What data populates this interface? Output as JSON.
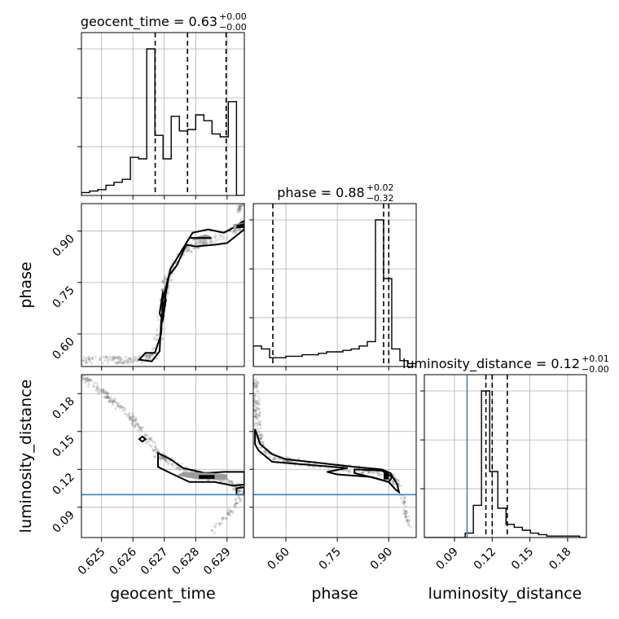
{
  "chart_data": {
    "type": "corner",
    "parameters": [
      "geocent_time",
      "phase",
      "luminosity_distance"
    ],
    "titles": [
      {
        "param": "geocent_time",
        "label": "geocent_time = 0.63",
        "plus": "+0.00",
        "minus": "−0.00"
      },
      {
        "param": "phase",
        "label": "phase = 0.88",
        "plus": "+0.02",
        "minus": "−0.32"
      },
      {
        "param": "luminosity_distance",
        "label": "luminosity_distance = 0.12",
        "plus": "+0.01",
        "minus": "−0.00"
      }
    ],
    "ranges": {
      "geocent_time": [
        0.62436,
        0.62955
      ],
      "phase": [
        0.505,
        0.98
      ],
      "luminosity_distance": [
        0.066,
        0.195
      ]
    },
    "ticks": {
      "geocent_time": [
        0.625,
        0.626,
        0.627,
        0.628,
        0.629
      ],
      "geocent_time_labels": [
        "0.625",
        "0.626",
        "0.627",
        "0.628",
        "0.629"
      ],
      "phase": [
        0.6,
        0.75,
        0.9
      ],
      "phase_labels": [
        "0.60",
        "0.75",
        "0.90"
      ],
      "luminosity_distance": [
        0.09,
        0.12,
        0.15,
        0.18
      ],
      "luminosity_distance_labels": [
        "0.09",
        "0.12",
        "0.15",
        "0.18"
      ]
    },
    "quantiles": {
      "geocent_time": [
        0.62671,
        0.62774,
        0.62897
      ],
      "phase": [
        0.562,
        0.885,
        0.9
      ],
      "luminosity_distance": [
        0.115,
        0.12,
        0.132
      ]
    },
    "truth": {
      "luminosity_distance": 0.1
    },
    "histograms": {
      "geocent_time": {
        "edges": [
          0.62436,
          0.62462,
          0.62488,
          0.62514,
          0.6254,
          0.62566,
          0.62592,
          0.62618,
          0.62644,
          0.6267,
          0.62696,
          0.62722,
          0.62748,
          0.62774,
          0.628,
          0.62826,
          0.62852,
          0.62878,
          0.62904,
          0.6293,
          0.62955
        ],
        "counts": [
          2,
          3,
          4,
          7,
          9,
          11,
          26,
          25,
          100,
          41,
          25,
          54,
          44,
          45,
          55,
          51,
          42,
          40,
          64,
          0
        ]
      },
      "phase": {
        "edges": [
          0.505,
          0.52875,
          0.5525,
          0.57625,
          0.6,
          0.62375,
          0.6475,
          0.67125,
          0.695,
          0.71875,
          0.7425,
          0.76625,
          0.79,
          0.81375,
          0.8375,
          0.86125,
          0.885,
          0.90875,
          0.9325,
          0.95625,
          0.98
        ],
        "counts": [
          14,
          12,
          6,
          6,
          7,
          7,
          8,
          8,
          9,
          10,
          10,
          11,
          12,
          14,
          17,
          100,
          60,
          12,
          4,
          2
        ]
      },
      "luminosity_distance": {
        "edges": [
          0.066,
          0.0725,
          0.079,
          0.0855,
          0.092,
          0.0985,
          0.105,
          0.1115,
          0.118,
          0.1245,
          0.131,
          0.1375,
          0.144,
          0.1505,
          0.157,
          0.1635,
          0.17,
          0.1765,
          0.183,
          0.1895,
          0.195
        ],
        "counts": [
          0,
          0,
          0,
          0,
          0,
          3,
          22,
          100,
          45,
          20,
          9,
          7,
          5,
          3,
          2,
          1,
          1,
          1,
          1,
          0
        ]
      }
    }
  }
}
